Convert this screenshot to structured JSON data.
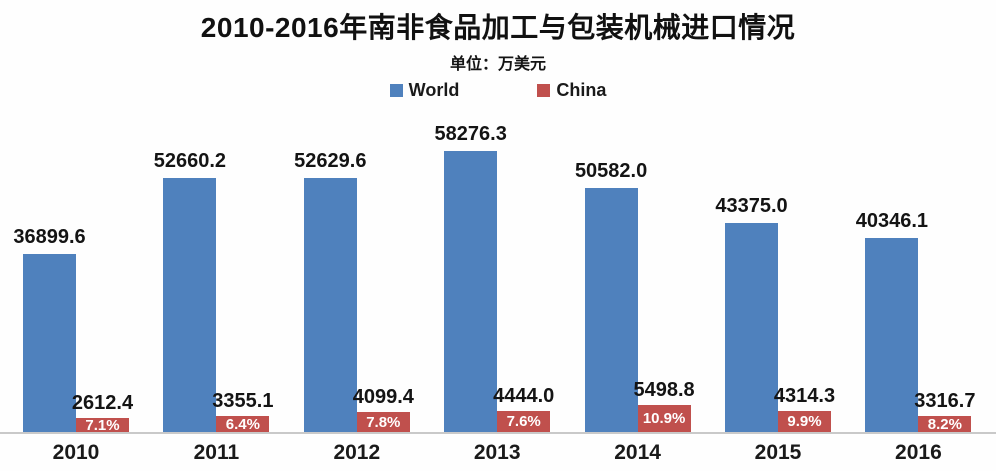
{
  "title": "2010-2016年南非食品加工与包装机械进口情况",
  "subtitle": "单位：万美元",
  "chart_data": {
    "type": "bar",
    "title": "2010-2016年南非食品加工与包装机械进口情况",
    "unit_label": "单位：万美元",
    "categories": [
      "2010",
      "2011",
      "2012",
      "2013",
      "2014",
      "2015",
      "2016"
    ],
    "series": [
      {
        "name": "World",
        "color": "#4f81bd",
        "values": [
          36899.6,
          52660.2,
          52629.6,
          58276.3,
          50582.0,
          43375.0,
          40346.1
        ]
      },
      {
        "name": "China",
        "color": "#c0504d",
        "values": [
          2612.4,
          3355.1,
          4099.4,
          4444.0,
          5498.8,
          4314.3,
          3316.7
        ],
        "percent_labels": [
          "7.1%",
          "6.4%",
          "7.8%",
          "7.6%",
          "10.9%",
          "9.9%",
          "8.2%"
        ]
      }
    ],
    "legend_position": "top",
    "grid": false,
    "xlabel": "",
    "ylabel": "",
    "ylim": [
      0,
      60000
    ],
    "axis_line_color": "#c9c9c9",
    "value_label_color": "#141414",
    "percent_text_color": "#ffffff"
  }
}
